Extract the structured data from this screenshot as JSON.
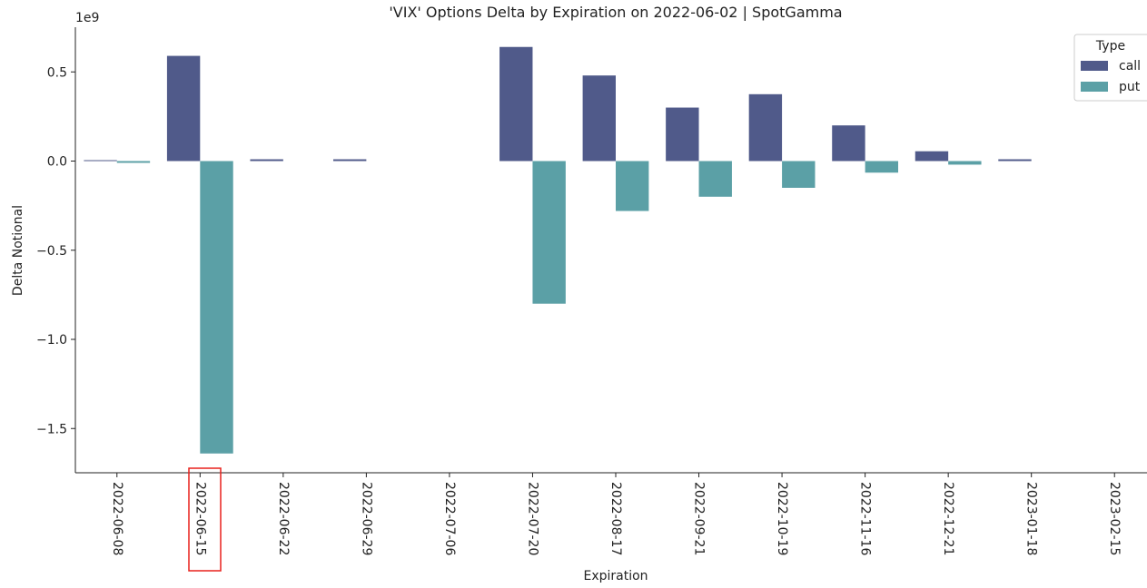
{
  "chart_data": {
    "type": "bar",
    "title": "'VIX' Options Delta by Expiration on 2022-06-02 | SpotGamma",
    "xlabel": "Expiration",
    "ylabel": "Delta Notional",
    "y_offset_label": "1e9",
    "y_scale": 1000000000,
    "ylim": [
      -1.75,
      0.75
    ],
    "yticks": [
      0.5,
      0.0,
      -0.5,
      -1.0,
      -1.5
    ],
    "ytick_labels": [
      "0.5",
      "0.0",
      "−0.5",
      "−1.0",
      "−1.5"
    ],
    "categories": [
      "2022-06-08",
      "2022-06-15",
      "2022-06-22",
      "2022-06-29",
      "2022-07-06",
      "2022-07-20",
      "2022-08-17",
      "2022-09-21",
      "2022-10-19",
      "2022-11-16",
      "2022-12-21",
      "2023-01-18",
      "2023-02-15"
    ],
    "highlighted_category": "2022-06-15",
    "highlight_color": "#e8211c",
    "legend": {
      "title": "Type",
      "placement": "top-right"
    },
    "series": [
      {
        "name": "call",
        "color": "#505a8a",
        "values": [
          0.005,
          0.59,
          0.01,
          0.01,
          0.0,
          0.64,
          0.48,
          0.3,
          0.375,
          0.2,
          0.055,
          0.01,
          0.0
        ]
      },
      {
        "name": "put",
        "color": "#5ba0a6",
        "values": [
          -0.01,
          -1.64,
          0.0,
          0.0,
          0.0,
          -0.8,
          -0.28,
          -0.2,
          -0.15,
          -0.065,
          -0.02,
          0.0,
          0.0
        ]
      }
    ]
  }
}
